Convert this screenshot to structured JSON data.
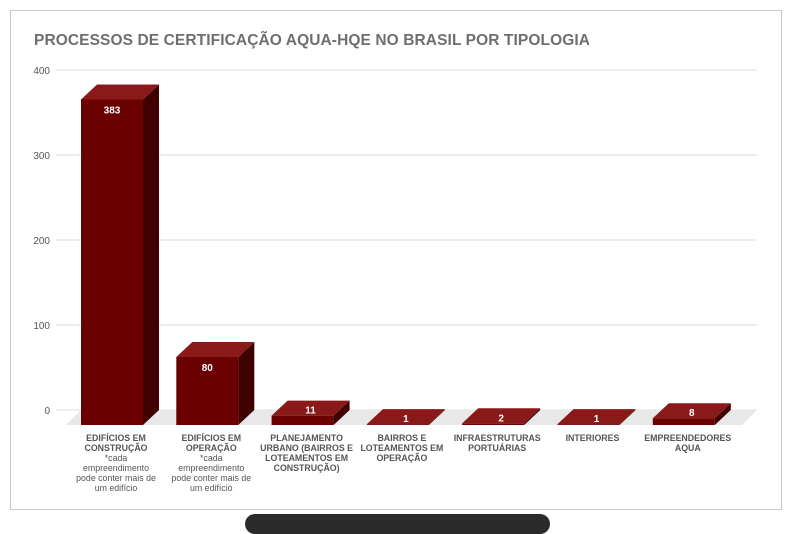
{
  "chart_data": {
    "type": "bar",
    "title": "PROCESSOS DE CERTIFICAÇÃO AQUA-HQE NO BRASIL POR TIPOLOGIA",
    "xlabel": "",
    "ylabel": "",
    "ylim": [
      0,
      400
    ],
    "yticks": [
      "0",
      "100",
      "200",
      "300",
      "400"
    ],
    "grid": true,
    "legend": "none",
    "style": "3d",
    "bar_color": "#6b0000",
    "categories": [
      [
        "EDIFÍCIOS EM",
        "CONSTRUÇÃO",
        "*cada",
        "empreendimento",
        "pode conter mais de",
        "um edifício"
      ],
      [
        "EDIFÍCIOS EM",
        "OPERAÇÃO",
        "*cada",
        "empreendimento",
        "pode conter mais de",
        "um edifício"
      ],
      [
        "PLANEJAMENTO",
        "URBANO (BAIRROS E",
        "LOTEAMENTOS EM",
        "CONSTRUÇÃO)"
      ],
      [
        "BAIRROS E",
        "LOTEAMENTOS EM",
        "OPERAÇÃO"
      ],
      [
        "INFRAESTRUTURAS",
        "PORTUÁRIAS"
      ],
      [
        "INTERIORES"
      ],
      [
        "EMPREENDEDORES",
        "AQUA"
      ]
    ],
    "values": [
      383,
      80,
      11,
      1,
      2,
      1,
      8
    ]
  }
}
